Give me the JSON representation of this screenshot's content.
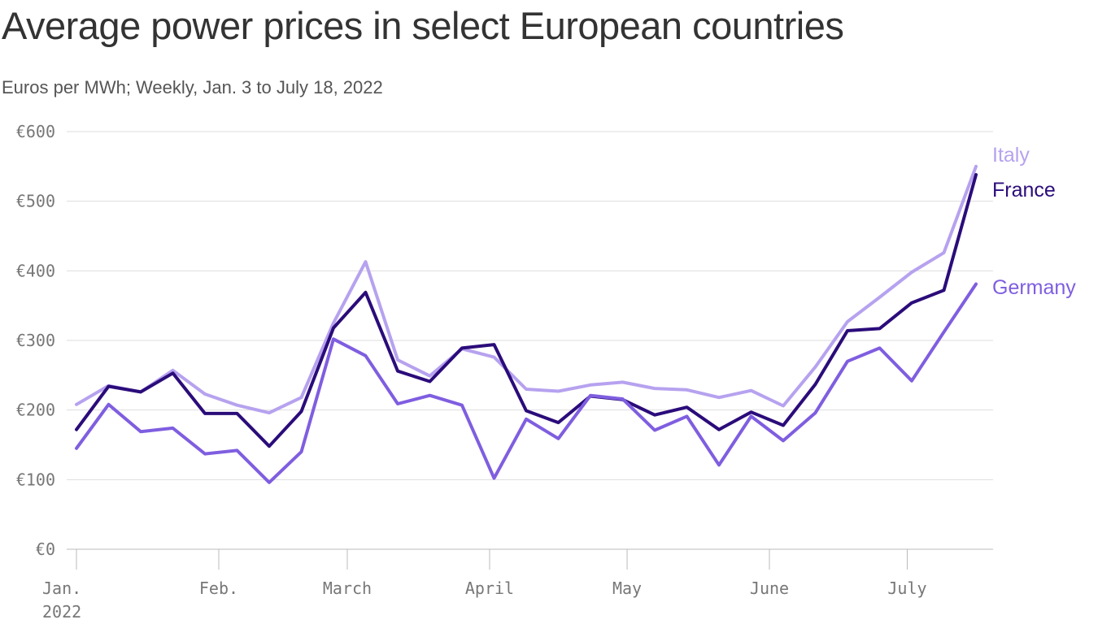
{
  "title": "Average power prices in select European countries",
  "subtitle": "Euros per MWh; Weekly, Jan. 3 to July 18, 2022",
  "chart_data": {
    "type": "line",
    "title": "Average power prices in select European countries",
    "subtitle": "Euros per MWh; Weekly, Jan. 3 to July 18, 2022",
    "xlabel": "",
    "ylabel": "Euros per MWh",
    "ylim": [
      0,
      600
    ],
    "yticks": [
      0,
      100,
      200,
      300,
      400,
      500,
      600
    ],
    "ytick_labels": [
      "€0",
      "€100",
      "€200",
      "€300",
      "€400",
      "€500",
      "€600"
    ],
    "xticks": [
      {
        "week": 0,
        "label": "Jan.",
        "label2": "2022"
      },
      {
        "week": 4.43,
        "label": "Feb."
      },
      {
        "week": 8.43,
        "label": "March"
      },
      {
        "week": 12.86,
        "label": "April"
      },
      {
        "week": 17.14,
        "label": "May"
      },
      {
        "week": 21.57,
        "label": "June"
      },
      {
        "week": 25.86,
        "label": "July"
      }
    ],
    "x_weeks": [
      0,
      1,
      2,
      3,
      4,
      5,
      6,
      7,
      8,
      9,
      10,
      11,
      12,
      13,
      14,
      15,
      16,
      17,
      18,
      19,
      20,
      21,
      22,
      23,
      24,
      25,
      26,
      27,
      28
    ],
    "grid": true,
    "legend": "inline-right",
    "series": [
      {
        "name": "Italy",
        "color": "#b6a2ef",
        "values": [
          208,
          235,
          226,
          257,
          223,
          207,
          196,
          218,
          325,
          413,
          272,
          249,
          288,
          276,
          230,
          227,
          236,
          240,
          231,
          229,
          218,
          228,
          206,
          262,
          327,
          362,
          398,
          426,
          550
        ]
      },
      {
        "name": "France",
        "color": "#2b0c7a",
        "values": [
          172,
          234,
          226,
          253,
          195,
          195,
          148,
          198,
          318,
          369,
          256,
          241,
          289,
          294,
          199,
          182,
          220,
          215,
          193,
          204,
          172,
          197,
          178,
          237,
          314,
          317,
          354,
          372,
          538
        ]
      },
      {
        "name": "Germany",
        "color": "#7f5ee0",
        "values": [
          145,
          208,
          169,
          174,
          137,
          142,
          96,
          140,
          302,
          278,
          209,
          221,
          207,
          102,
          187,
          159,
          221,
          216,
          171,
          191,
          121,
          191,
          156,
          196,
          270,
          289,
          242,
          312,
          381
        ]
      }
    ]
  }
}
